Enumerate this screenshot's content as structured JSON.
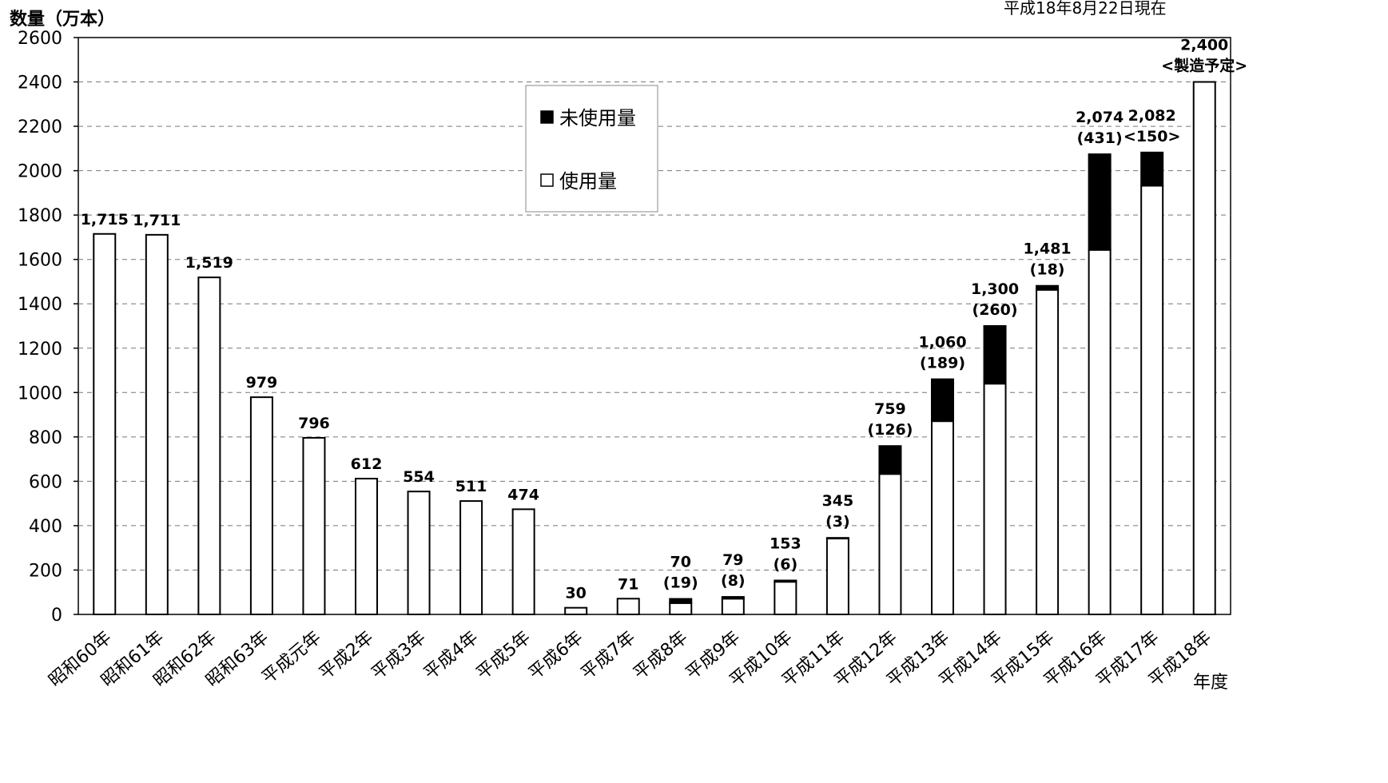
{
  "chart_data": {
    "type": "bar",
    "stacked": true,
    "title": "",
    "ylabel": "数量（万本）",
    "xlabel": "年度",
    "date_note": "平成18年8月22日現在",
    "ylim": [
      0,
      2600
    ],
    "yticks": [
      0,
      200,
      400,
      600,
      800,
      1000,
      1200,
      1400,
      1600,
      1800,
      2000,
      2200,
      2400,
      2600
    ],
    "grid": "horizontal dashed",
    "legend_position": "top-center",
    "categories": [
      "昭和60年",
      "昭和61年",
      "昭和62年",
      "昭和63年",
      "平成元年",
      "平成2年",
      "平成3年",
      "平成4年",
      "平成5年",
      "平成6年",
      "平成7年",
      "平成8年",
      "平成9年",
      "平成10年",
      "平成11年",
      "平成12年",
      "平成13年",
      "平成14年",
      "平成15年",
      "平成16年",
      "平成17年",
      "平成18年"
    ],
    "series": [
      {
        "name": "使用量",
        "fill": "#ffffff",
        "values": [
          1715,
          1711,
          1519,
          979,
          796,
          612,
          554,
          511,
          474,
          30,
          71,
          51,
          71,
          147,
          342,
          633,
          871,
          1040,
          1463,
          1643,
          1932,
          2400
        ]
      },
      {
        "name": "未使用量",
        "fill": "#000000",
        "values": [
          0,
          0,
          0,
          0,
          0,
          0,
          0,
          0,
          0,
          0,
          0,
          19,
          8,
          6,
          3,
          126,
          189,
          260,
          18,
          431,
          150,
          0
        ]
      }
    ],
    "labels": [
      {
        "total": "1,715",
        "note": ""
      },
      {
        "total": "1,711",
        "note": ""
      },
      {
        "total": "1,519",
        "note": ""
      },
      {
        "total": "979",
        "note": ""
      },
      {
        "total": "796",
        "note": ""
      },
      {
        "total": "612",
        "note": ""
      },
      {
        "total": "554",
        "note": ""
      },
      {
        "total": "511",
        "note": ""
      },
      {
        "total": "474",
        "note": ""
      },
      {
        "total": "30",
        "note": ""
      },
      {
        "total": "71",
        "note": ""
      },
      {
        "total": "70",
        "note": "(19)"
      },
      {
        "total": "79",
        "note": "(8)"
      },
      {
        "total": "153",
        "note": "(6)"
      },
      {
        "total": "345",
        "note": "(3)"
      },
      {
        "total": "759",
        "note": "(126)"
      },
      {
        "total": "1,060",
        "note": "(189)"
      },
      {
        "total": "1,300",
        "note": "(260)"
      },
      {
        "total": "1,481",
        "note": "(18)"
      },
      {
        "total": "2,074",
        "note": "(431)"
      },
      {
        "total": "2,082",
        "note": "<150>"
      },
      {
        "total": "2,400",
        "note": "<製造予定>"
      }
    ]
  }
}
